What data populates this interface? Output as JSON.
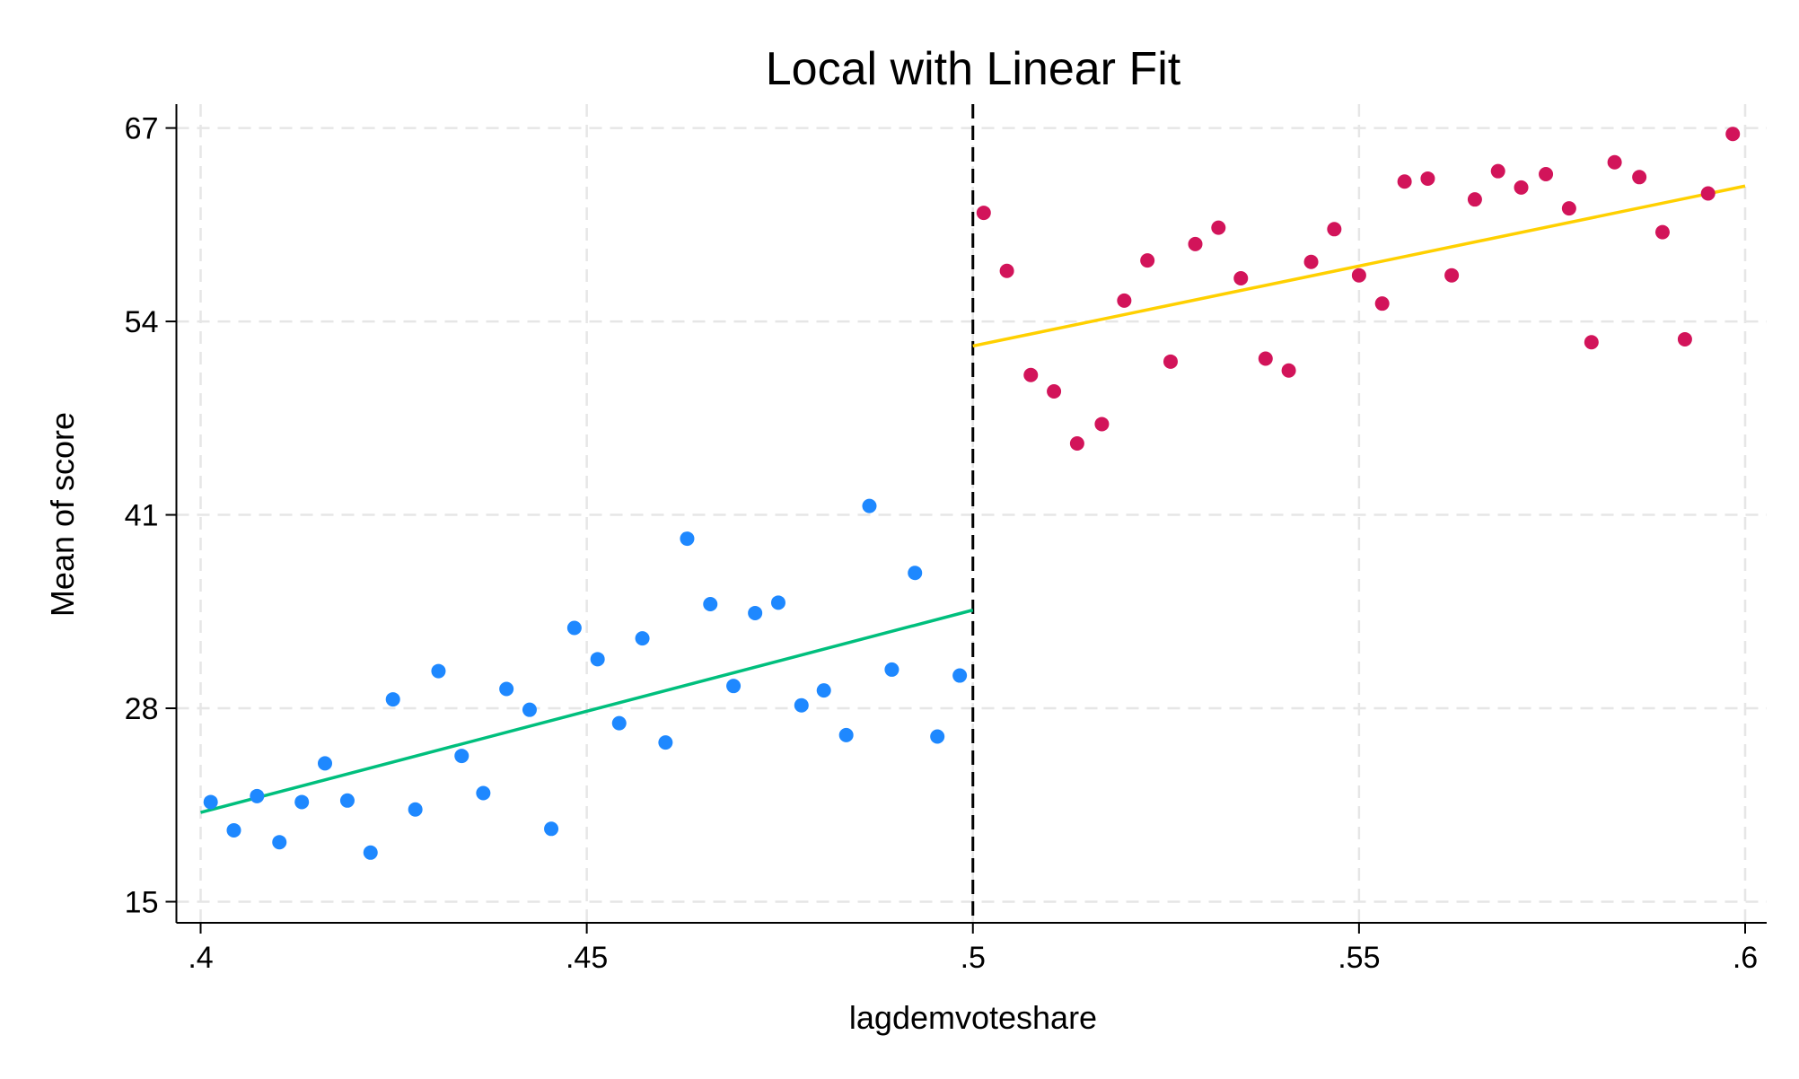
{
  "chart_data": {
    "type": "scatter",
    "title": "Local with Linear Fit",
    "xlabel": "lagdemvoteshare",
    "ylabel": "Mean of score",
    "xlim": [
      0.4,
      0.6
    ],
    "ylim": [
      15,
      67
    ],
    "xticks": [
      0.4,
      0.45,
      0.5,
      0.55,
      0.6
    ],
    "xtick_labels": [
      ".4",
      ".45",
      ".5",
      ".55",
      ".6"
    ],
    "yticks": [
      15,
      28,
      41,
      54,
      67
    ],
    "ytick_labels": [
      "15",
      "28",
      "41",
      "54",
      "67"
    ],
    "grid": true,
    "cutoff": 0.5,
    "cutoff_line_color": "#000000",
    "series": [
      {
        "color": "#1e88ff",
        "points": [
          [
            0.4013,
            21.7
          ],
          [
            0.4043,
            19.8
          ],
          [
            0.4073,
            22.1
          ],
          [
            0.4102,
            19.0
          ],
          [
            0.4131,
            21.7
          ],
          [
            0.4161,
            24.3
          ],
          [
            0.419,
            21.8
          ],
          [
            0.422,
            18.3
          ],
          [
            0.4249,
            28.6
          ],
          [
            0.4278,
            21.2
          ],
          [
            0.4308,
            30.5
          ],
          [
            0.4338,
            24.8
          ],
          [
            0.4366,
            22.3
          ],
          [
            0.4396,
            29.3
          ],
          [
            0.4426,
            27.9
          ],
          [
            0.4454,
            19.9
          ],
          [
            0.4484,
            33.4
          ],
          [
            0.4514,
            31.3
          ],
          [
            0.4542,
            27.0
          ],
          [
            0.4572,
            32.7
          ],
          [
            0.4602,
            25.7
          ],
          [
            0.463,
            39.4
          ],
          [
            0.466,
            35.0
          ],
          [
            0.469,
            29.5
          ],
          [
            0.4718,
            34.4
          ],
          [
            0.4748,
            35.1
          ],
          [
            0.4778,
            28.2
          ],
          [
            0.4807,
            29.2
          ],
          [
            0.4836,
            26.2
          ],
          [
            0.4866,
            41.6
          ],
          [
            0.4895,
            30.6
          ],
          [
            0.4925,
            37.1
          ],
          [
            0.4954,
            26.1
          ],
          [
            0.4983,
            30.2
          ]
        ]
      },
      {
        "color": "#d2145a",
        "points": [
          [
            0.5014,
            61.3
          ],
          [
            0.5044,
            57.4
          ],
          [
            0.5075,
            50.4
          ],
          [
            0.5105,
            49.3
          ],
          [
            0.5135,
            45.8
          ],
          [
            0.5167,
            47.1
          ],
          [
            0.5196,
            55.4
          ],
          [
            0.5226,
            58.1
          ],
          [
            0.5256,
            51.3
          ],
          [
            0.5288,
            59.2
          ],
          [
            0.5318,
            60.3
          ],
          [
            0.5347,
            56.9
          ],
          [
            0.5379,
            51.5
          ],
          [
            0.5409,
            50.7
          ],
          [
            0.5438,
            58.0
          ],
          [
            0.5468,
            60.2
          ],
          [
            0.55,
            57.1
          ],
          [
            0.553,
            55.2
          ],
          [
            0.5559,
            63.4
          ],
          [
            0.5589,
            63.6
          ],
          [
            0.562,
            57.1
          ],
          [
            0.565,
            62.2
          ],
          [
            0.568,
            64.1
          ],
          [
            0.571,
            63.0
          ],
          [
            0.5742,
            63.9
          ],
          [
            0.5772,
            61.6
          ],
          [
            0.5801,
            52.6
          ],
          [
            0.5831,
            64.7
          ],
          [
            0.5863,
            63.7
          ],
          [
            0.5893,
            60.0
          ],
          [
            0.5922,
            52.8
          ],
          [
            0.5952,
            62.6
          ],
          [
            0.5984,
            66.6
          ]
        ]
      }
    ],
    "fit_lines": [
      {
        "color": "#00bf7d",
        "from": [
          0.4,
          21.0
        ],
        "to": [
          0.5,
          34.6
        ]
      },
      {
        "color": "#ffd000",
        "from": [
          0.5,
          52.35
        ],
        "to": [
          0.6,
          63.1
        ]
      }
    ]
  }
}
